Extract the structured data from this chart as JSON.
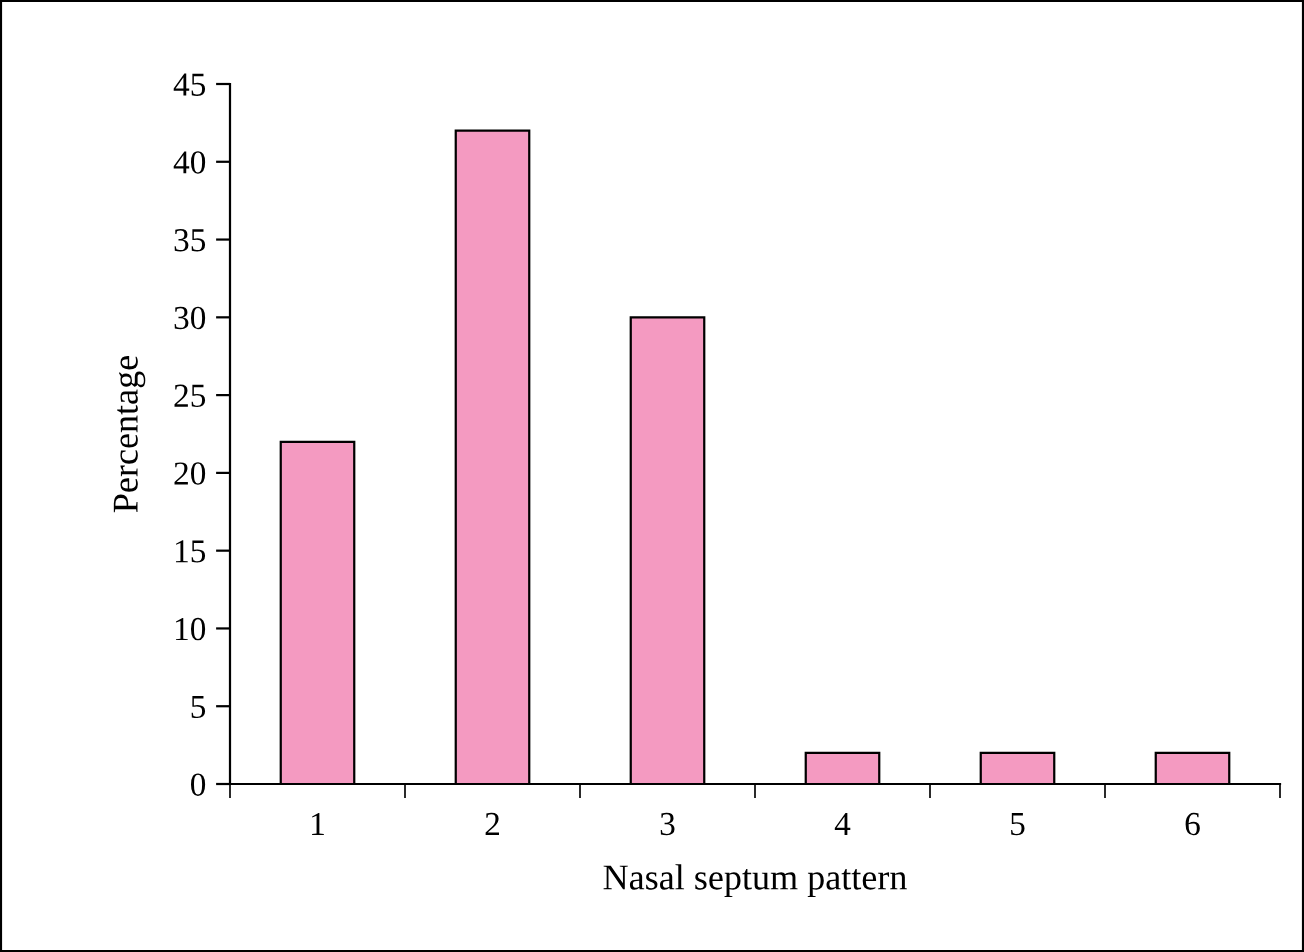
{
  "chart_data": {
    "type": "bar",
    "xlabel": "Nasal septum pattern",
    "ylabel": "Percentage",
    "categories": [
      "1",
      "2",
      "3",
      "4",
      "5",
      "6"
    ],
    "values": [
      22,
      42,
      30,
      2,
      2,
      2
    ],
    "color": "#f49ac1",
    "ylim": [
      0,
      45
    ],
    "yticks": [
      0,
      5,
      10,
      15,
      20,
      25,
      30,
      35,
      40,
      45
    ],
    "grid": false,
    "legend": false
  }
}
